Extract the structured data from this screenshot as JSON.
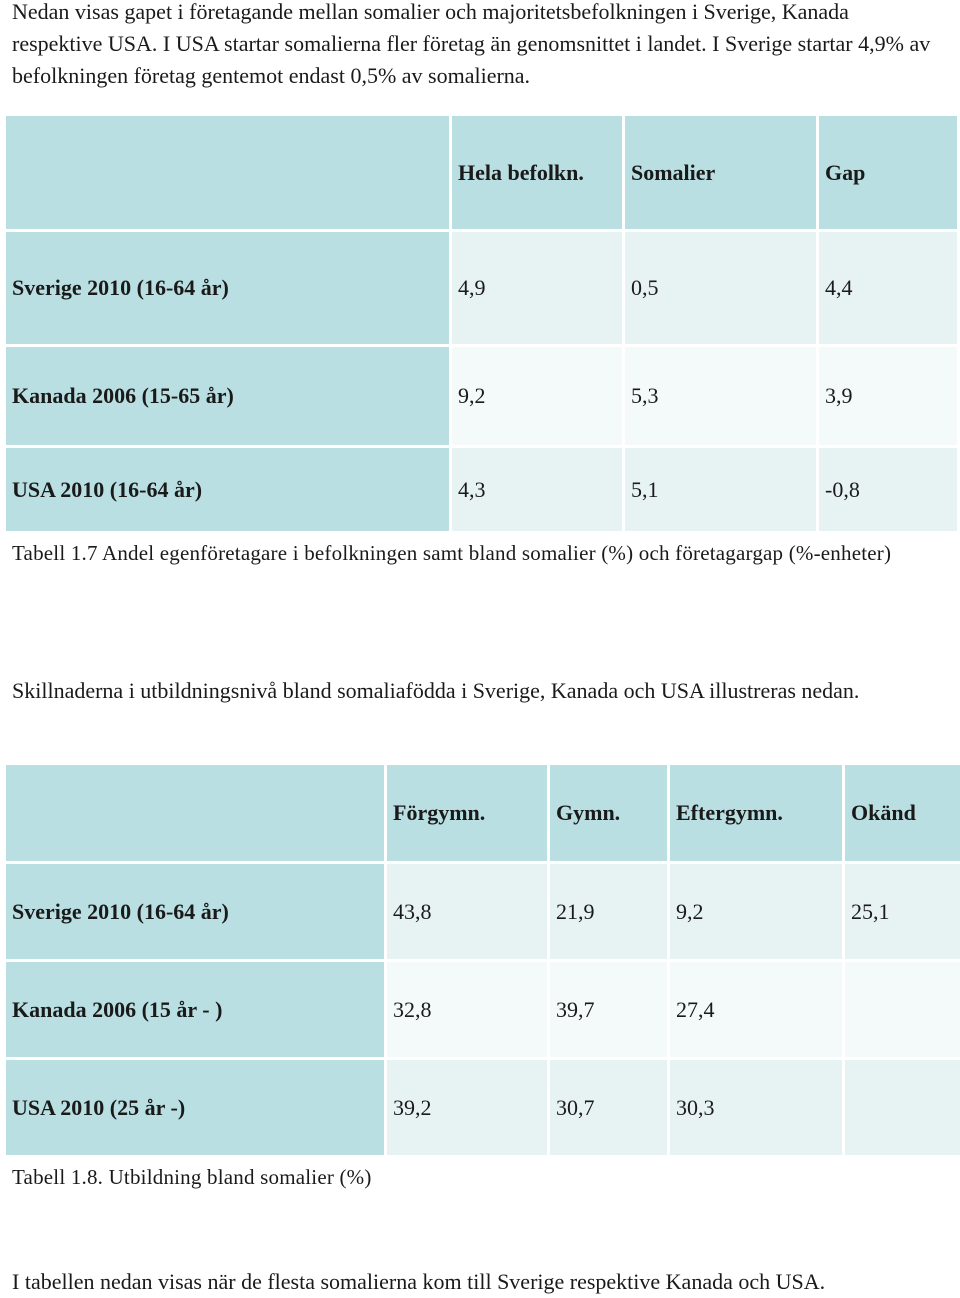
{
  "intro_text": "Nedan visas gapet i företagande mellan somalier och majoritetsbefolkningen i Sverige, Kanada respektive USA. I USA startar somalierna fler företag än genomsnittet i landet. I Sverige startar 4,9% av befolkningen företag gentemot endast 0,5% av somalierna.",
  "table1": {
    "headers": [
      "",
      "Hela befolkn.",
      "Somalier",
      "Gap"
    ],
    "rows": [
      {
        "label": "Sverige 2010 (16-64 år)",
        "cells": [
          "4,9",
          "0,5",
          "4,4"
        ]
      },
      {
        "label": "Kanada 2006 (15-65 år)",
        "cells": [
          "9,2",
          "5,3",
          "3,9"
        ]
      },
      {
        "label": "USA 2010 (16-64 år)",
        "cells": [
          "4,3",
          "5,1",
          "-0,8"
        ]
      }
    ],
    "caption": "Tabell 1.7 Andel egenföretagare i befolkningen samt bland somalier (%) och företagargap (%-enheter)"
  },
  "middle_text": "Skillnaderna i utbildningsnivå bland somaliafödda i Sverige, Kanada och USA illustreras nedan.",
  "table2": {
    "headers": [
      "",
      "Förgymn.",
      "Gymn.",
      "Eftergymn.",
      "Okänd"
    ],
    "rows": [
      {
        "label": "Sverige 2010 (16-64 år)",
        "cells": [
          "43,8",
          "21,9",
          "9,2",
          "25,1"
        ]
      },
      {
        "label": "Kanada 2006 (15 år - )",
        "cells": [
          "32,8",
          "39,7",
          "27,4",
          ""
        ]
      },
      {
        "label": "USA 2010 (25 år -)",
        "cells": [
          "39,2",
          "30,7",
          "30,3",
          ""
        ]
      }
    ],
    "caption": "Tabell 1.8. Utbildning bland somalier (%)"
  },
  "final_text": "I tabellen nedan visas när de flesta somalierna kom till Sverige respektive Kanada och USA."
}
